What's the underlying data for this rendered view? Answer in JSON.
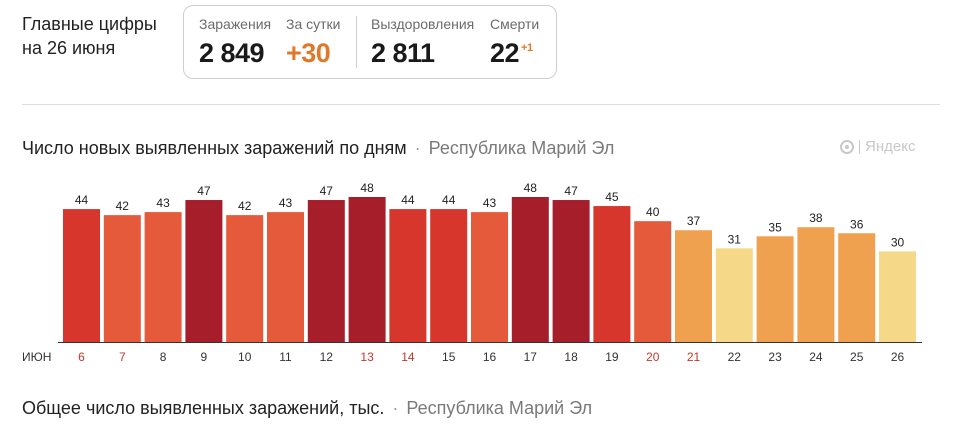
{
  "header": {
    "title_line1": "Главные цифры",
    "title_line2": "на 26 июня"
  },
  "stats": {
    "infections_label": "Заражения",
    "infections_value": "2 849",
    "daily_label": "За сутки",
    "daily_value": "+30",
    "recoveries_label": "Выздоровления",
    "recoveries_value": "2 811",
    "deaths_label": "Смерти",
    "deaths_value": "22",
    "deaths_delta": "+1"
  },
  "chart_section": {
    "title": "Число новых выявленных заражений по дням",
    "separator": "·",
    "region": "Республика Марий Эл",
    "logo_text": "Яндекс"
  },
  "bottom_section": {
    "title": "Общее число выявленных заражений, тыс.",
    "separator": "·",
    "region": "Республика Марий Эл"
  },
  "colors": {
    "dark_red": "#a51e2a",
    "red": "#d6362c",
    "orange_red": "#e55a3a",
    "orange": "#f0a14f",
    "light_yellow": "#f6d988",
    "weekend_label": "#c0392b",
    "weekday_label": "#333333"
  },
  "chart_data": {
    "type": "bar",
    "title": "Число новых выявленных заражений по дням",
    "month_label": "ИЮН",
    "categories": [
      "6",
      "7",
      "8",
      "9",
      "10",
      "11",
      "12",
      "13",
      "14",
      "15",
      "16",
      "17",
      "18",
      "19",
      "20",
      "21",
      "22",
      "23",
      "24",
      "25",
      "26"
    ],
    "values": [
      44,
      42,
      43,
      47,
      42,
      43,
      47,
      48,
      44,
      44,
      43,
      48,
      47,
      45,
      40,
      37,
      31,
      35,
      38,
      36,
      30
    ],
    "weekend_categories": [
      "6",
      "7",
      "13",
      "14",
      "20",
      "21"
    ],
    "bar_colors": [
      "#d6362c",
      "#e55a3a",
      "#e55a3a",
      "#a51e2a",
      "#e55a3a",
      "#e55a3a",
      "#a51e2a",
      "#a51e2a",
      "#d6362c",
      "#d6362c",
      "#e55a3a",
      "#a51e2a",
      "#a51e2a",
      "#d6362c",
      "#e55a3a",
      "#f0a14f",
      "#f6d988",
      "#f0a14f",
      "#f0a14f",
      "#f0a14f",
      "#f6d988"
    ],
    "ylim": [
      0,
      48
    ],
    "grid": false,
    "xlabel": "",
    "ylabel": ""
  }
}
